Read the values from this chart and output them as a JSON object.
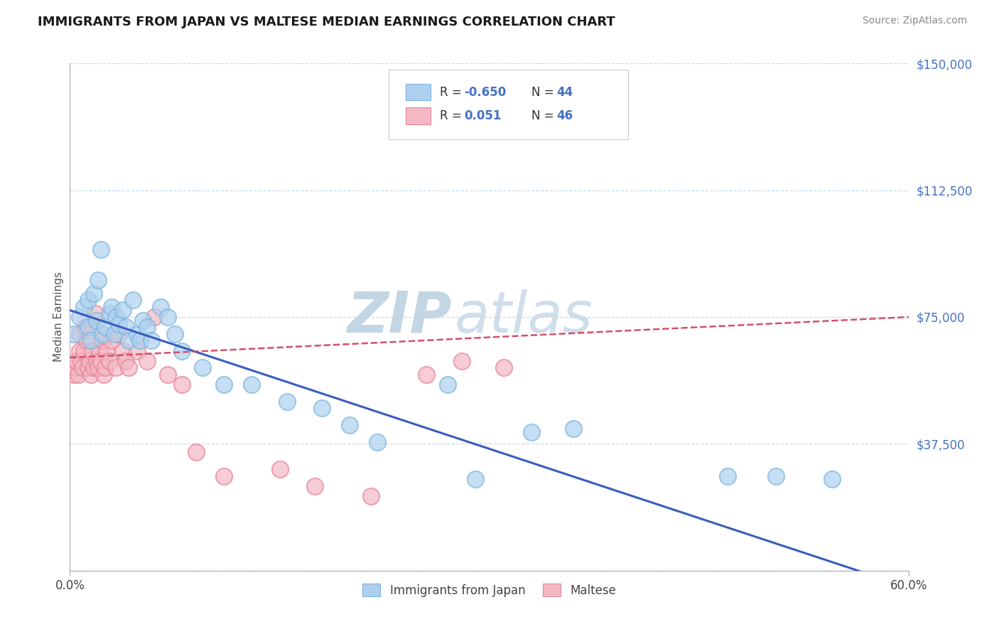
{
  "title": "IMMIGRANTS FROM JAPAN VS MALTESE MEDIAN EARNINGS CORRELATION CHART",
  "source": "Source: ZipAtlas.com",
  "ylabel": "Median Earnings",
  "xmin": 0.0,
  "xmax": 0.6,
  "ymin": 0,
  "ymax": 150000,
  "yticks": [
    0,
    37500,
    75000,
    112500,
    150000
  ],
  "ytick_labels": [
    "",
    "$37,500",
    "$75,000",
    "$112,500",
    "$150,000"
  ],
  "japan_color": "#7db8e0",
  "japan_color_fill": "#aed0ee",
  "maltese_color": "#e8859a",
  "maltese_color_fill": "#f4b8c4",
  "japan_line_color": "#3a5cbf",
  "maltese_line_color": "#d44f6a",
  "background_color": "#ffffff",
  "grid_color": "#c8d8e8",
  "title_color": "#1a1a1a",
  "tick_color_right": "#4472c4",
  "legend_R1": "-0.650",
  "legend_N1": "44",
  "legend_R2": "0.051",
  "legend_N2": "46",
  "legend_color_text": "#4472c4",
  "legend_color_label": "#333333",
  "watermark_zip_color": "#b8cfe0",
  "watermark_atlas_color": "#c8d8e8",
  "japan_x": [
    0.003,
    0.007,
    0.01,
    0.013,
    0.013,
    0.015,
    0.017,
    0.019,
    0.02,
    0.022,
    0.023,
    0.025,
    0.028,
    0.03,
    0.032,
    0.033,
    0.035,
    0.038,
    0.04,
    0.042,
    0.045,
    0.048,
    0.05,
    0.052,
    0.055,
    0.058,
    0.065,
    0.07,
    0.075,
    0.08,
    0.095,
    0.11,
    0.13,
    0.155,
    0.18,
    0.2,
    0.22,
    0.27,
    0.29,
    0.33,
    0.36,
    0.47,
    0.505,
    0.545
  ],
  "japan_y": [
    70000,
    75000,
    78000,
    72000,
    80000,
    68000,
    82000,
    74000,
    86000,
    95000,
    70000,
    72000,
    76000,
    78000,
    70000,
    75000,
    73000,
    77000,
    72000,
    68000,
    80000,
    70000,
    68000,
    74000,
    72000,
    68000,
    78000,
    75000,
    70000,
    65000,
    60000,
    55000,
    55000,
    50000,
    48000,
    43000,
    38000,
    55000,
    27000,
    41000,
    42000,
    28000,
    28000,
    27000
  ],
  "maltese_x": [
    0.003,
    0.004,
    0.005,
    0.006,
    0.007,
    0.007,
    0.008,
    0.009,
    0.01,
    0.011,
    0.012,
    0.013,
    0.014,
    0.015,
    0.016,
    0.016,
    0.017,
    0.018,
    0.019,
    0.02,
    0.021,
    0.022,
    0.023,
    0.024,
    0.025,
    0.026,
    0.028,
    0.03,
    0.033,
    0.035,
    0.038,
    0.04,
    0.042,
    0.048,
    0.055,
    0.06,
    0.07,
    0.08,
    0.09,
    0.11,
    0.15,
    0.175,
    0.215,
    0.255,
    0.28,
    0.31
  ],
  "maltese_y": [
    58000,
    60000,
    62000,
    58000,
    65000,
    70000,
    62000,
    60000,
    65000,
    72000,
    68000,
    60000,
    62000,
    58000,
    65000,
    72000,
    60000,
    76000,
    62000,
    60000,
    65000,
    62000,
    68000,
    58000,
    60000,
    65000,
    62000,
    68000,
    60000,
    70000,
    65000,
    62000,
    60000,
    65000,
    62000,
    75000,
    58000,
    55000,
    35000,
    28000,
    30000,
    25000,
    22000,
    58000,
    62000,
    60000
  ]
}
